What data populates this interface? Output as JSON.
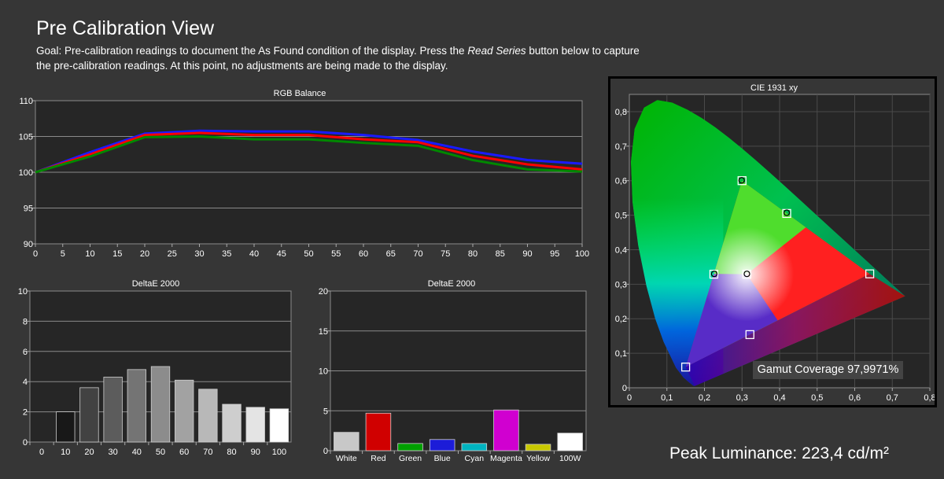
{
  "page": {
    "title": "Pre Calibration View",
    "goal_prefix": "Goal: Pre-calibration readings to document the As Found condition of the display. Press the ",
    "goal_emphasis": "Read Series",
    "goal_suffix": " button below to capture the pre-calibration readings. At this point, no adjustments are being made to the display.",
    "peak_luminance": "Peak Luminance: 223,4 cd/m²",
    "gamut_coverage": "Gamut Coverage 97,9971%"
  },
  "colors": {
    "background": "#363636",
    "plot_bg": "#262626",
    "red": "#ff0000",
    "green": "#008800",
    "blue": "#1a1aff"
  },
  "chart_data": [
    {
      "id": "rgb",
      "type": "line",
      "title": "RGB Balance",
      "x": [
        0,
        10,
        20,
        30,
        40,
        50,
        60,
        70,
        80,
        90,
        100
      ],
      "xticks": [
        0,
        5,
        10,
        15,
        20,
        25,
        30,
        35,
        40,
        45,
        50,
        55,
        60,
        65,
        70,
        75,
        80,
        85,
        90,
        95,
        100
      ],
      "yticks": [
        90,
        95,
        100,
        105,
        110
      ],
      "xlim": [
        0,
        100
      ],
      "ylim": [
        90,
        110
      ],
      "grid": true,
      "series": [
        {
          "color": "#1a1aff",
          "values": [
            100,
            102.8,
            105.4,
            105.8,
            105.7,
            105.7,
            105.2,
            104.5,
            102.9,
            101.7,
            101.2
          ]
        },
        {
          "color": "#ff0000",
          "values": [
            100,
            102.5,
            105.2,
            105.5,
            105.2,
            105.2,
            104.6,
            104.2,
            102.3,
            101.1,
            100.4
          ]
        },
        {
          "color": "#008800",
          "values": [
            100,
            102.2,
            104.9,
            105.0,
            104.6,
            104.6,
            104.1,
            103.7,
            101.7,
            100.4,
            100.1
          ]
        }
      ]
    },
    {
      "id": "de_gray",
      "type": "bar",
      "title": "DeltaE 2000",
      "categories": [
        "0",
        "10",
        "20",
        "30",
        "40",
        "50",
        "60",
        "70",
        "80",
        "90",
        "100"
      ],
      "values": [
        0,
        2.0,
        3.6,
        4.3,
        4.8,
        5.0,
        4.1,
        3.5,
        2.5,
        2.3,
        2.2
      ],
      "bar_colors": [
        "#000000",
        "#181818",
        "#424242",
        "#5c5c5c",
        "#747474",
        "#8c8c8c",
        "#a2a2a2",
        "#b8b8b8",
        "#cecece",
        "#e4e4e4",
        "#ffffff"
      ],
      "yticks": [
        0,
        2,
        4,
        6,
        8,
        10
      ],
      "ylim": [
        0,
        10
      ],
      "grid": true
    },
    {
      "id": "de_color",
      "type": "bar",
      "title": "DeltaE 2000",
      "categories": [
        "White",
        "Red",
        "Green",
        "Blue",
        "Cyan",
        "Magenta",
        "Yellow",
        "100W"
      ],
      "values": [
        2.3,
        4.7,
        0.9,
        1.4,
        0.9,
        5.1,
        0.8,
        2.2
      ],
      "bar_colors": [
        "#c8c8c8",
        "#d00000",
        "#00a000",
        "#1c1cd8",
        "#00b4c0",
        "#d000d0",
        "#c8c800",
        "#ffffff"
      ],
      "yticks": [
        0,
        5,
        10,
        15,
        20
      ],
      "ylim": [
        0,
        20
      ],
      "grid": true
    },
    {
      "id": "cie",
      "type": "scatter",
      "title": "CIE 1931 xy",
      "xticks": [
        "0",
        "0,1",
        "0,2",
        "0,3",
        "0,4",
        "0,5",
        "0,6",
        "0,7",
        "0,8"
      ],
      "yticks": [
        "0",
        "0,1",
        "0,2",
        "0,3",
        "0,4",
        "0,5",
        "0,6",
        "0,7",
        "0,8"
      ],
      "xlim": [
        0,
        0.8
      ],
      "ylim": [
        0,
        0.85
      ],
      "grid": true,
      "target_triangle": [
        [
          0.64,
          0.33
        ],
        [
          0.3,
          0.6
        ],
        [
          0.15,
          0.06
        ]
      ],
      "targets": [
        {
          "x": 0.64,
          "y": 0.33
        },
        {
          "x": 0.3,
          "y": 0.6
        },
        {
          "x": 0.15,
          "y": 0.06
        },
        {
          "x": 0.225,
          "y": 0.329
        },
        {
          "x": 0.321,
          "y": 0.154
        },
        {
          "x": 0.419,
          "y": 0.505
        },
        {
          "x": 0.3127,
          "y": 0.329
        }
      ],
      "measured": [
        {
          "x": 0.299,
          "y": 0.601
        },
        {
          "x": 0.419,
          "y": 0.507
        },
        {
          "x": 0.226,
          "y": 0.33
        },
        {
          "x": 0.313,
          "y": 0.33
        }
      ]
    }
  ]
}
